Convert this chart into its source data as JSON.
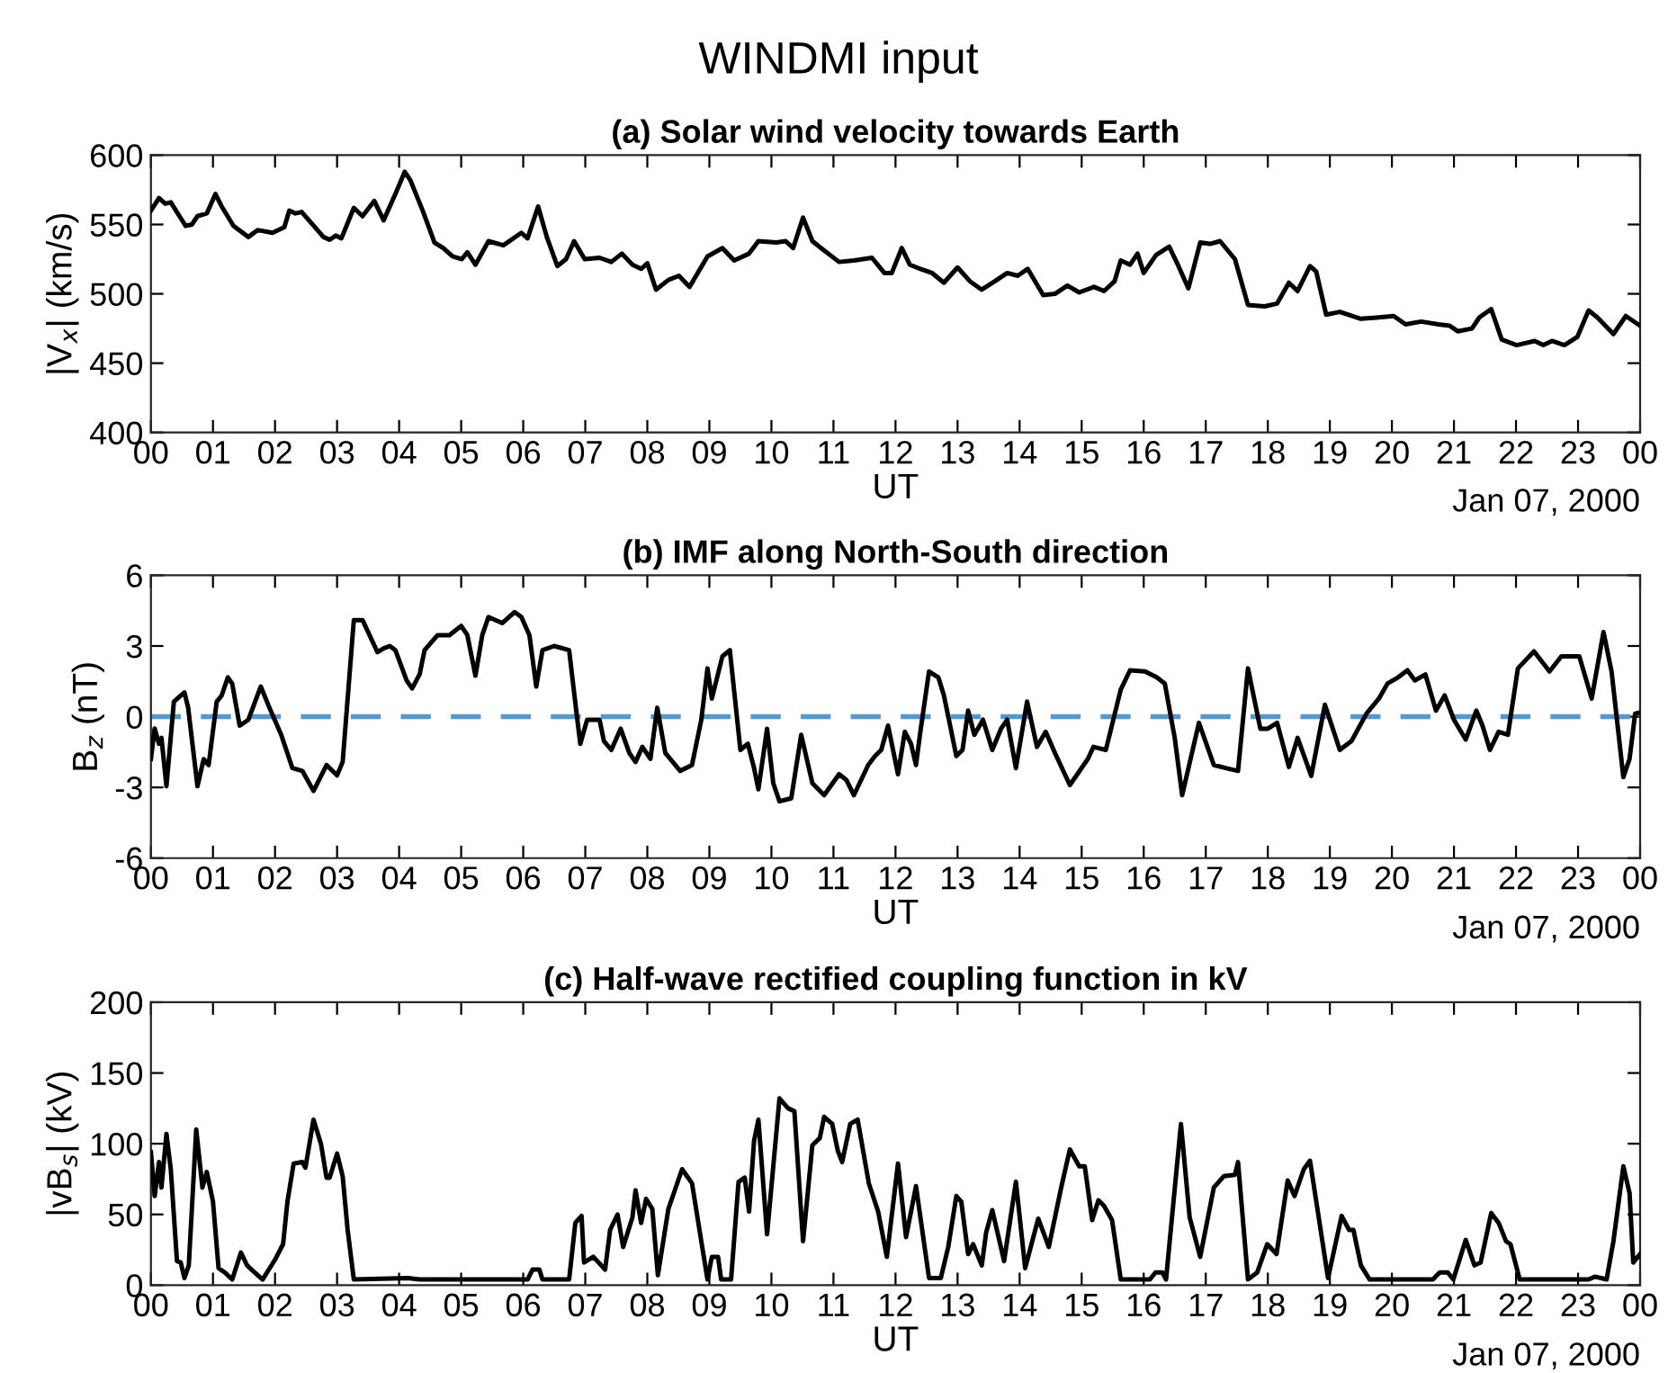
{
  "chart_data": [
    {
      "type": "line",
      "title": "(a) Solar wind velocity towards Earth",
      "xlabel": "UT",
      "ylabel": "|V$_{x}$| (km/s)",
      "annotations": [
        "WINDMI input",
        "Jan 07, 2000"
      ],
      "xlim": [
        0,
        24
      ],
      "ylim": [
        400,
        600
      ],
      "yticks": [
        400,
        450,
        500,
        550,
        600
      ],
      "xticks": [
        {
          "value": 0,
          "label": "00"
        },
        {
          "value": 1,
          "label": "01"
        },
        {
          "value": 2,
          "label": "02"
        },
        {
          "value": 3,
          "label": "03"
        },
        {
          "value": 4,
          "label": "04"
        },
        {
          "value": 5,
          "label": "05"
        },
        {
          "value": 6,
          "label": "06"
        },
        {
          "value": 7,
          "label": "07"
        },
        {
          "value": 8,
          "label": "08"
        },
        {
          "value": 9,
          "label": "09"
        },
        {
          "value": 10,
          "label": "10"
        },
        {
          "value": 11,
          "label": "11"
        },
        {
          "value": 12,
          "label": "12"
        },
        {
          "value": 13,
          "label": "13"
        },
        {
          "value": 14,
          "label": "14"
        },
        {
          "value": 15,
          "label": "15"
        },
        {
          "value": 16,
          "label": "16"
        },
        {
          "value": 17,
          "label": "17"
        },
        {
          "value": 18,
          "label": "18"
        },
        {
          "value": 19,
          "label": "19"
        },
        {
          "value": 20,
          "label": "20"
        },
        {
          "value": 21,
          "label": "21"
        },
        {
          "value": 22,
          "label": "22"
        },
        {
          "value": 23,
          "label": "23"
        },
        {
          "value": 24,
          "label": "00"
        }
      ],
      "grid": false,
      "legend": false,
      "marker": "none",
      "line_style": "solid",
      "series": [
        {
          "color": "#000000",
          "x": [
            0,
            0.13,
            0.23,
            0.32,
            0.46,
            0.56,
            0.66,
            0.75,
            0.9,
            1.04,
            1.14,
            1.33,
            1.57,
            1.72,
            1.96,
            2.15,
            2.23,
            2.33,
            2.43,
            2.78,
            2.88,
            2.98,
            3.07,
            3.27,
            3.41,
            3.6,
            3.75,
            3.94,
            4.09,
            4.18,
            4.38,
            4.57,
            4.71,
            4.86,
            5.01,
            5.1,
            5.23,
            5.44,
            5.68,
            5.97,
            6.07,
            6.24,
            6.38,
            6.55,
            6.69,
            6.82,
            6.99,
            7.23,
            7.42,
            7.59,
            7.76,
            7.9,
            8.0,
            8.14,
            8.34,
            8.51,
            8.68,
            8.97,
            9.21,
            9.4,
            9.64,
            9.79,
            10.08,
            10.23,
            10.35,
            10.51,
            10.66,
            10.8,
            11.09,
            11.33,
            11.62,
            11.82,
            11.94,
            12.1,
            12.23,
            12.4,
            12.59,
            12.78,
            13.0,
            13.2,
            13.39,
            13.6,
            13.8,
            13.97,
            14.13,
            14.38,
            14.57,
            14.77,
            14.96,
            15.2,
            15.36,
            15.53,
            15.63,
            15.78,
            15.9,
            16.0,
            16.2,
            16.41,
            16.55,
            16.72,
            16.91,
            17.07,
            17.23,
            17.47,
            17.68,
            17.95,
            18.15,
            18.34,
            18.48,
            18.68,
            18.78,
            18.94,
            19.16,
            19.5,
            19.79,
            20.03,
            20.22,
            20.47,
            20.75,
            20.93,
            21.06,
            21.29,
            21.41,
            21.6,
            21.77,
            22.01,
            22.3,
            22.44,
            22.58,
            22.78,
            22.99,
            23.17,
            23.31,
            23.57,
            23.77,
            24.0
          ],
          "values": [
            560,
            569,
            565,
            566,
            556,
            549,
            550,
            556,
            558,
            572,
            563,
            549,
            541,
            546,
            544,
            548,
            560,
            558,
            559,
            541,
            539,
            542,
            540,
            562,
            556,
            567,
            553,
            572,
            588,
            582,
            560,
            537,
            533,
            527,
            525,
            530,
            521,
            538,
            535,
            544,
            540,
            563,
            541,
            520,
            525,
            538,
            525,
            526,
            523,
            529,
            521,
            518,
            522,
            503,
            510,
            513,
            505,
            527,
            533,
            524,
            529,
            538,
            537,
            538,
            533,
            555,
            538,
            533,
            523,
            524,
            526,
            515,
            515,
            533,
            521,
            518,
            515,
            508,
            519,
            509,
            503,
            509,
            515,
            513,
            518,
            499,
            500,
            506,
            501,
            505,
            502,
            509,
            524,
            521,
            529,
            515,
            528,
            534,
            521,
            504,
            537,
            536,
            538,
            525,
            492,
            491,
            493,
            508,
            502,
            520,
            516,
            485,
            487,
            482,
            483,
            484,
            478,
            480,
            478,
            477,
            473,
            475,
            483,
            489,
            467,
            463,
            466,
            463,
            466,
            463,
            469,
            488,
            483,
            471,
            484,
            477
          ]
        }
      ]
    },
    {
      "type": "line",
      "title": "(b) IMF along North-South direction",
      "xlabel": "UT",
      "ylabel": "B$_{z}$ (nT)",
      "annotations": [
        "Jan 07, 2000"
      ],
      "xlim": [
        0,
        24
      ],
      "ylim": [
        -6,
        6
      ],
      "yticks": [
        -6,
        -3,
        0,
        3,
        6
      ],
      "xticks": [
        {
          "value": 0,
          "label": "00"
        },
        {
          "value": 1,
          "label": "01"
        },
        {
          "value": 2,
          "label": "02"
        },
        {
          "value": 3,
          "label": "03"
        },
        {
          "value": 4,
          "label": "04"
        },
        {
          "value": 5,
          "label": "05"
        },
        {
          "value": 6,
          "label": "06"
        },
        {
          "value": 7,
          "label": "07"
        },
        {
          "value": 8,
          "label": "08"
        },
        {
          "value": 9,
          "label": "09"
        },
        {
          "value": 10,
          "label": "10"
        },
        {
          "value": 11,
          "label": "11"
        },
        {
          "value": 12,
          "label": "12"
        },
        {
          "value": 13,
          "label": "13"
        },
        {
          "value": 14,
          "label": "14"
        },
        {
          "value": 15,
          "label": "15"
        },
        {
          "value": 16,
          "label": "16"
        },
        {
          "value": 17,
          "label": "17"
        },
        {
          "value": 18,
          "label": "18"
        },
        {
          "value": 19,
          "label": "19"
        },
        {
          "value": 20,
          "label": "20"
        },
        {
          "value": 21,
          "label": "21"
        },
        {
          "value": 22,
          "label": "22"
        },
        {
          "value": 23,
          "label": "23"
        },
        {
          "value": 24,
          "label": "00"
        }
      ],
      "grid": false,
      "legend": false,
      "marker": "none",
      "line_style": "solid",
      "ref_lines": [
        {
          "axis": "y",
          "value": 0,
          "color": "#4d9ad6",
          "line_style": "dashed"
        }
      ],
      "series": [
        {
          "color": "#000000",
          "x": [
            0,
            0.06,
            0.13,
            0.17,
            0.25,
            0.37,
            0.46,
            0.54,
            0.6,
            0.75,
            0.85,
            0.93,
            1.06,
            1.14,
            1.24,
            1.31,
            1.43,
            1.57,
            1.77,
            1.91,
            2.1,
            2.28,
            2.44,
            2.62,
            2.83,
            3.0,
            3.09,
            3.27,
            3.41,
            3.65,
            3.75,
            3.85,
            3.94,
            4.12,
            4.21,
            4.33,
            4.41,
            4.62,
            4.81,
            5.0,
            5.1,
            5.23,
            5.34,
            5.44,
            5.66,
            5.86,
            5.97,
            6.1,
            6.21,
            6.31,
            6.5,
            6.74,
            6.86,
            6.92,
            7.03,
            7.23,
            7.3,
            7.42,
            7.57,
            7.71,
            7.81,
            7.92,
            8.05,
            8.16,
            8.29,
            8.53,
            8.72,
            8.87,
            8.97,
            9.04,
            9.21,
            9.33,
            9.5,
            9.62,
            9.72,
            9.79,
            9.93,
            10.03,
            10.13,
            10.32,
            10.48,
            10.66,
            10.85,
            11.09,
            11.21,
            11.33,
            11.56,
            11.67,
            11.77,
            11.88,
            12.04,
            12.15,
            12.25,
            12.33,
            12.4,
            12.54,
            12.69,
            12.78,
            12.88,
            12.98,
            13.08,
            13.17,
            13.27,
            13.41,
            13.56,
            13.7,
            13.8,
            13.94,
            14.12,
            14.28,
            14.42,
            14.57,
            14.81,
            15.1,
            15.19,
            15.39,
            15.63,
            15.78,
            16.02,
            16.21,
            16.34,
            16.5,
            16.62,
            16.89,
            17.13,
            17.32,
            17.52,
            17.68,
            17.88,
            18.0,
            18.15,
            18.34,
            18.48,
            18.7,
            18.92,
            19.16,
            19.35,
            19.59,
            19.79,
            19.93,
            20.1,
            20.25,
            20.37,
            20.54,
            20.71,
            20.85,
            21.0,
            21.19,
            21.36,
            21.46,
            21.58,
            21.72,
            21.87,
            22.03,
            22.29,
            22.54,
            22.73,
            23.02,
            23.22,
            23.41,
            23.54,
            23.73,
            23.83,
            23.92,
            24.0
          ],
          "values": [
            -1.79,
            -0.5,
            -1.15,
            -0.9,
            -2.95,
            0.64,
            0.85,
            1.03,
            0.38,
            -2.95,
            -1.8,
            -2.05,
            0.64,
            0.9,
            1.67,
            1.4,
            -0.38,
            -0.13,
            1.28,
            0.38,
            -0.77,
            -2.18,
            -2.3,
            -3.15,
            -2.05,
            -2.49,
            -1.92,
            4.1,
            4.1,
            2.74,
            2.9,
            3.0,
            2.82,
            1.54,
            1.2,
            1.8,
            2.82,
            3.46,
            3.46,
            3.85,
            3.46,
            1.74,
            3.46,
            4.23,
            3.97,
            4.44,
            4.23,
            3.46,
            1.28,
            2.82,
            3.0,
            2.82,
            0.13,
            -1.15,
            -0.13,
            -0.13,
            -1.03,
            -1.41,
            -0.51,
            -1.54,
            -1.92,
            -1.28,
            -1.79,
            0.38,
            -1.54,
            -2.3,
            -2.05,
            -0.13,
            2.05,
            0.77,
            2.56,
            2.82,
            -1.41,
            -1.15,
            -2.18,
            -3.08,
            -0.51,
            -2.82,
            -3.59,
            -3.46,
            -0.77,
            -2.82,
            -3.33,
            -2.44,
            -2.69,
            -3.33,
            -2.05,
            -1.67,
            -1.41,
            -0.38,
            -2.44,
            -0.64,
            -1.15,
            -2.05,
            -0.64,
            1.92,
            1.67,
            0.9,
            -0.38,
            -1.67,
            -1.41,
            0.26,
            -0.77,
            -0.13,
            -1.41,
            -0.51,
            -0.13,
            -2.18,
            0.64,
            -1.28,
            -0.64,
            -1.54,
            -2.9,
            -1.79,
            -1.28,
            -1.41,
            1.15,
            1.97,
            1.92,
            1.67,
            1.41,
            -0.9,
            -3.33,
            -0.26,
            -2.05,
            -2.18,
            -2.3,
            2.05,
            -0.51,
            -0.51,
            -0.26,
            -2.13,
            -0.9,
            -2.51,
            0.51,
            -1.41,
            -1.03,
            0.13,
            0.77,
            1.41,
            1.67,
            1.97,
            1.54,
            1.79,
            0.26,
            0.9,
            -0.13,
            -0.97,
            0.26,
            -0.38,
            -1.41,
            -0.64,
            -0.77,
            2.05,
            2.77,
            1.92,
            2.56,
            2.56,
            0.77,
            3.59,
            1.92,
            -2.56,
            -1.79,
            0.13,
            0.18
          ]
        }
      ]
    },
    {
      "type": "line",
      "title": "(c) Half-wave rectified coupling function in kV",
      "xlabel": "UT",
      "ylabel": "|vB$_{s}$| (kV)",
      "annotations": [
        "Jan 07, 2000"
      ],
      "xlim": [
        0,
        24
      ],
      "ylim": [
        0,
        200
      ],
      "yticks": [
        0,
        50,
        100,
        150,
        200
      ],
      "xticks": [
        {
          "value": 0,
          "label": "00"
        },
        {
          "value": 1,
          "label": "01"
        },
        {
          "value": 2,
          "label": "02"
        },
        {
          "value": 3,
          "label": "03"
        },
        {
          "value": 4,
          "label": "04"
        },
        {
          "value": 5,
          "label": "05"
        },
        {
          "value": 6,
          "label": "06"
        },
        {
          "value": 7,
          "label": "07"
        },
        {
          "value": 8,
          "label": "08"
        },
        {
          "value": 9,
          "label": "09"
        },
        {
          "value": 10,
          "label": "10"
        },
        {
          "value": 11,
          "label": "11"
        },
        {
          "value": 12,
          "label": "12"
        },
        {
          "value": 13,
          "label": "13"
        },
        {
          "value": 14,
          "label": "14"
        },
        {
          "value": 15,
          "label": "15"
        },
        {
          "value": 16,
          "label": "16"
        },
        {
          "value": 17,
          "label": "17"
        },
        {
          "value": 18,
          "label": "18"
        },
        {
          "value": 19,
          "label": "19"
        },
        {
          "value": 20,
          "label": "20"
        },
        {
          "value": 21,
          "label": "21"
        },
        {
          "value": 22,
          "label": "22"
        },
        {
          "value": 23,
          "label": "23"
        },
        {
          "value": 24,
          "label": "00"
        }
      ],
      "grid": false,
      "legend": false,
      "marker": "none",
      "line_style": "solid",
      "series": [
        {
          "color": "#000000",
          "x": [
            0,
            0.06,
            0.13,
            0.17,
            0.25,
            0.32,
            0.42,
            0.48,
            0.54,
            0.61,
            0.73,
            0.83,
            0.9,
            1.0,
            1.09,
            1.19,
            1.31,
            1.45,
            1.55,
            1.67,
            1.8,
            2.0,
            2.13,
            2.2,
            2.3,
            2.44,
            2.49,
            2.62,
            2.74,
            2.83,
            2.88,
            3.0,
            3.09,
            3.17,
            3.27,
            4.14,
            4.33,
            6.07,
            6.15,
            6.26,
            6.31,
            6.74,
            6.84,
            6.94,
            6.98,
            7.13,
            7.32,
            7.4,
            7.52,
            7.61,
            7.76,
            7.81,
            7.9,
            7.98,
            8.08,
            8.17,
            8.34,
            8.56,
            8.72,
            8.87,
            8.97,
            9.04,
            9.14,
            9.19,
            9.35,
            9.47,
            9.57,
            9.64,
            9.72,
            9.79,
            9.93,
            10.13,
            10.27,
            10.37,
            10.51,
            10.66,
            10.78,
            10.85,
            10.98,
            11.07,
            11.14,
            11.27,
            11.39,
            11.57,
            11.72,
            11.86,
            12.04,
            12.17,
            12.33,
            12.54,
            12.73,
            12.85,
            12.98,
            13.06,
            13.17,
            13.25,
            13.39,
            13.46,
            13.56,
            13.75,
            13.94,
            14.09,
            14.3,
            14.47,
            14.67,
            14.81,
            14.96,
            15.05,
            15.17,
            15.27,
            15.36,
            15.49,
            15.63,
            16.1,
            16.19,
            16.3,
            16.36,
            16.6,
            16.74,
            16.91,
            17.13,
            17.29,
            17.47,
            17.52,
            17.68,
            17.83,
            17.99,
            18.14,
            18.32,
            18.43,
            18.58,
            18.68,
            18.82,
            18.97,
            19.19,
            19.31,
            19.38,
            19.5,
            19.64,
            20.66,
            20.77,
            20.9,
            20.99,
            21.19,
            21.33,
            21.43,
            21.6,
            21.72,
            21.84,
            21.91,
            22.06,
            23.17,
            23.27,
            23.46,
            23.57,
            23.73,
            23.83,
            23.89,
            24.0
          ],
          "values": [
            94,
            63,
            87,
            69,
            107,
            82,
            17,
            16,
            5,
            14,
            110,
            69,
            80,
            59,
            12,
            9,
            4,
            23,
            14,
            9,
            4,
            18,
            29,
            59,
            86,
            87,
            83,
            117,
            100,
            76,
            76,
            93,
            77,
            39,
            4,
            5,
            4,
            4,
            11,
            11,
            4,
            4,
            44,
            49,
            16,
            20,
            11,
            39,
            50,
            27,
            48,
            67,
            44,
            61,
            54,
            7,
            54,
            82,
            72,
            31,
            4,
            20,
            20,
            4,
            4,
            73,
            76,
            52,
            102,
            117,
            36,
            132,
            125,
            123,
            31,
            99,
            104,
            119,
            114,
            95,
            87,
            114,
            117,
            72,
            52,
            20,
            86,
            34,
            70,
            5,
            5,
            27,
            63,
            59,
            22,
            29,
            14,
            37,
            53,
            17,
            73,
            12,
            47,
            27,
            69,
            96,
            84,
            84,
            46,
            60,
            56,
            46,
            4,
            4,
            9,
            9,
            4,
            114,
            48,
            20,
            69,
            77,
            78,
            87,
            4,
            9,
            29,
            22,
            74,
            63,
            82,
            88,
            48,
            5,
            49,
            39,
            39,
            14,
            4,
            4,
            9,
            9,
            4,
            32,
            14,
            16,
            51,
            44,
            31,
            29,
            4,
            4,
            6,
            4,
            31,
            84,
            65,
            16,
            22
          ]
        }
      ]
    }
  ]
}
